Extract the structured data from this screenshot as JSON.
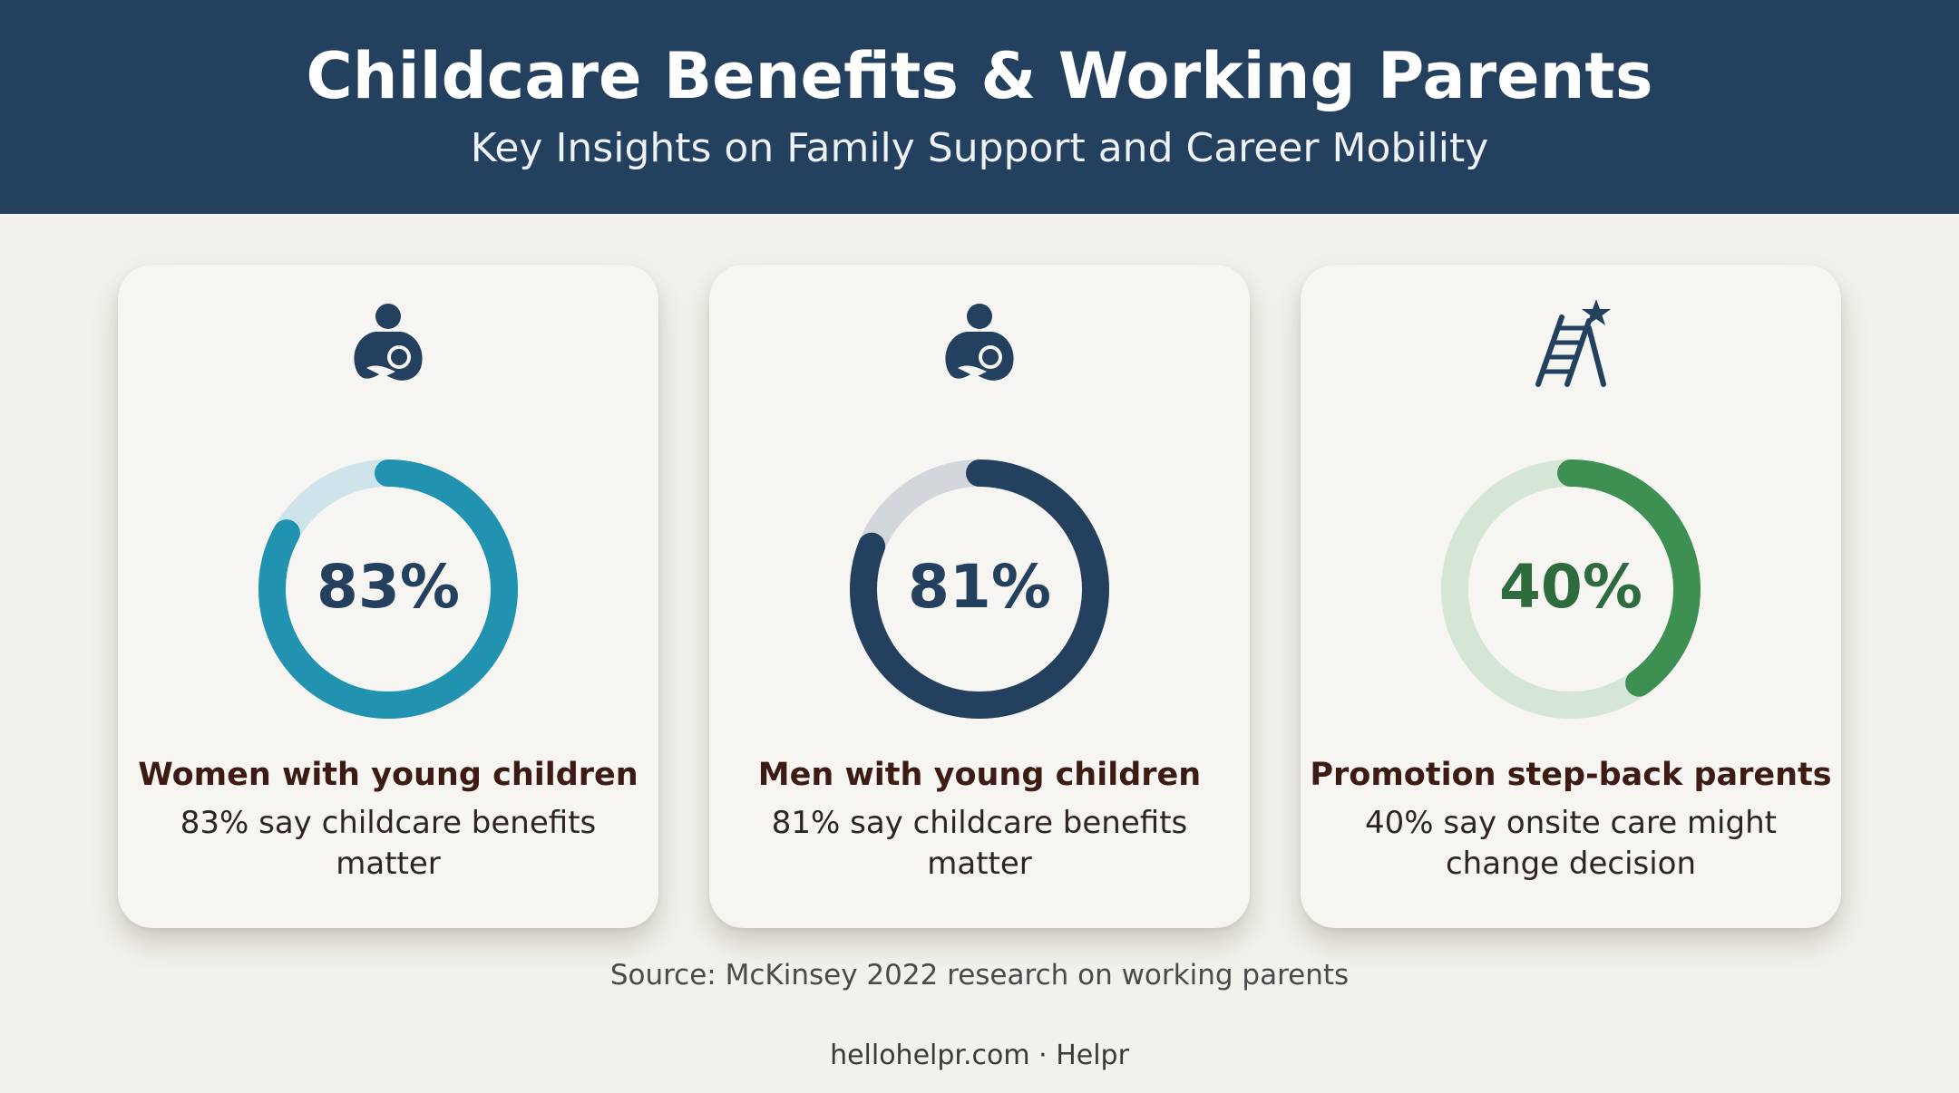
{
  "header": {
    "title": "Childcare Benefits & Working Parents",
    "subtitle": "Key Insights on Family Support and Career Mobility"
  },
  "cards": [
    {
      "icon": "parent-holding-child-icon",
      "value_text": "83%",
      "label": "Women with young children",
      "description": "83% say childcare benefits matter",
      "color": "#2193b0",
      "track_color": "#cfe4ea",
      "text_color": "#24405f"
    },
    {
      "icon": "parent-holding-child-icon",
      "value_text": "81%",
      "label": "Men with young children",
      "description": "81% say childcare benefits matter",
      "color": "#24405f",
      "track_color": "#d3d6da",
      "text_color": "#24405f"
    },
    {
      "icon": "ladder-star-icon",
      "value_text": "40%",
      "label": "Promotion step-back parents",
      "description": "40% say onsite care might change decision",
      "color": "#3e8f52",
      "track_color": "#d6e6d6",
      "text_color": "#2e6b3d"
    }
  ],
  "chart_data": [
    {
      "type": "pie",
      "labels": [
        "Women with young children"
      ],
      "values": [
        83
      ],
      "unit": "%"
    },
    {
      "type": "pie",
      "labels": [
        "Men with young children"
      ],
      "values": [
        81
      ],
      "unit": "%"
    },
    {
      "type": "pie",
      "labels": [
        "Promotion step-back parents"
      ],
      "values": [
        40
      ],
      "unit": "%"
    }
  ],
  "source": "Source: McKinsey 2022 research on working parents",
  "footer": "hellohelpr.com · Helpr",
  "colors": {
    "header_bg": "#24405f",
    "page_bg": "#f3f1ec",
    "card_bg": "#f6f5f1",
    "icon": "#24405f"
  }
}
